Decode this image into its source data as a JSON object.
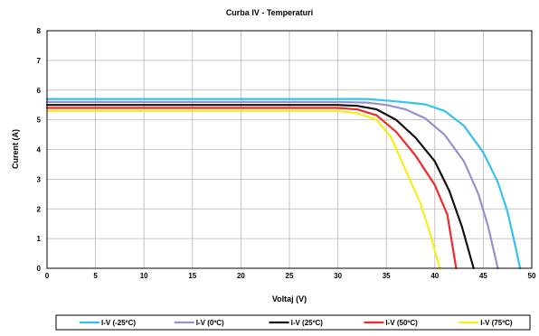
{
  "chart_data": {
    "type": "line",
    "title": "Curba IV - Temperaturi",
    "xlabel": "Voltaj (V)",
    "ylabel": "Curent (A)",
    "xlim": [
      0,
      50
    ],
    "ylim": [
      0,
      8
    ],
    "xticks": [
      0,
      5,
      10,
      15,
      20,
      25,
      30,
      35,
      40,
      45,
      50
    ],
    "yticks": [
      0,
      1,
      2,
      3,
      4,
      5,
      6,
      7,
      8
    ],
    "grid": true,
    "legend_position": "bottom",
    "series": [
      {
        "name": "I-V (-25ºC)",
        "color": "#33c3ec",
        "points": [
          [
            0,
            5.7
          ],
          [
            10,
            5.7
          ],
          [
            20,
            5.7
          ],
          [
            30,
            5.7
          ],
          [
            33,
            5.7
          ],
          [
            36,
            5.62
          ],
          [
            39,
            5.52
          ],
          [
            41,
            5.3
          ],
          [
            43,
            4.8
          ],
          [
            45,
            3.9
          ],
          [
            46.5,
            2.9
          ],
          [
            47.5,
            1.9
          ],
          [
            48.2,
            0.9
          ],
          [
            48.8,
            0.0
          ]
        ]
      },
      {
        "name": "I-V (0ºC)",
        "color": "#9b8fce",
        "points": [
          [
            0,
            5.6
          ],
          [
            10,
            5.6
          ],
          [
            20,
            5.6
          ],
          [
            30,
            5.6
          ],
          [
            33,
            5.58
          ],
          [
            35,
            5.5
          ],
          [
            37,
            5.35
          ],
          [
            39,
            5.05
          ],
          [
            41,
            4.5
          ],
          [
            43,
            3.6
          ],
          [
            44.5,
            2.5
          ],
          [
            45.5,
            1.4
          ],
          [
            46.5,
            0.0
          ]
        ]
      },
      {
        "name": "I-V (25ºC)",
        "color": "#111111",
        "points": [
          [
            0,
            5.5
          ],
          [
            10,
            5.5
          ],
          [
            20,
            5.5
          ],
          [
            30,
            5.5
          ],
          [
            32,
            5.47
          ],
          [
            34,
            5.35
          ],
          [
            36,
            5.0
          ],
          [
            38,
            4.4
          ],
          [
            40,
            3.6
          ],
          [
            41.5,
            2.6
          ],
          [
            42.8,
            1.4
          ],
          [
            44,
            0.0
          ]
        ]
      },
      {
        "name": "I-V (50ºC)",
        "color": "#ee2b2b",
        "points": [
          [
            0,
            5.4
          ],
          [
            10,
            5.4
          ],
          [
            20,
            5.4
          ],
          [
            30,
            5.4
          ],
          [
            32,
            5.35
          ],
          [
            34,
            5.15
          ],
          [
            36,
            4.6
          ],
          [
            38,
            3.8
          ],
          [
            40,
            2.8
          ],
          [
            41.3,
            1.8
          ],
          [
            42.2,
            0.0
          ]
        ]
      },
      {
        "name": "I-V (75ºC)",
        "color": "#f7ee1c",
        "points": [
          [
            0,
            5.3
          ],
          [
            10,
            5.3
          ],
          [
            20,
            5.3
          ],
          [
            30,
            5.3
          ],
          [
            32,
            5.22
          ],
          [
            34,
            5.0
          ],
          [
            35.5,
            4.4
          ],
          [
            37,
            3.3
          ],
          [
            38.5,
            2.2
          ],
          [
            39.5,
            1.2
          ],
          [
            40.5,
            0.0
          ]
        ]
      }
    ]
  }
}
